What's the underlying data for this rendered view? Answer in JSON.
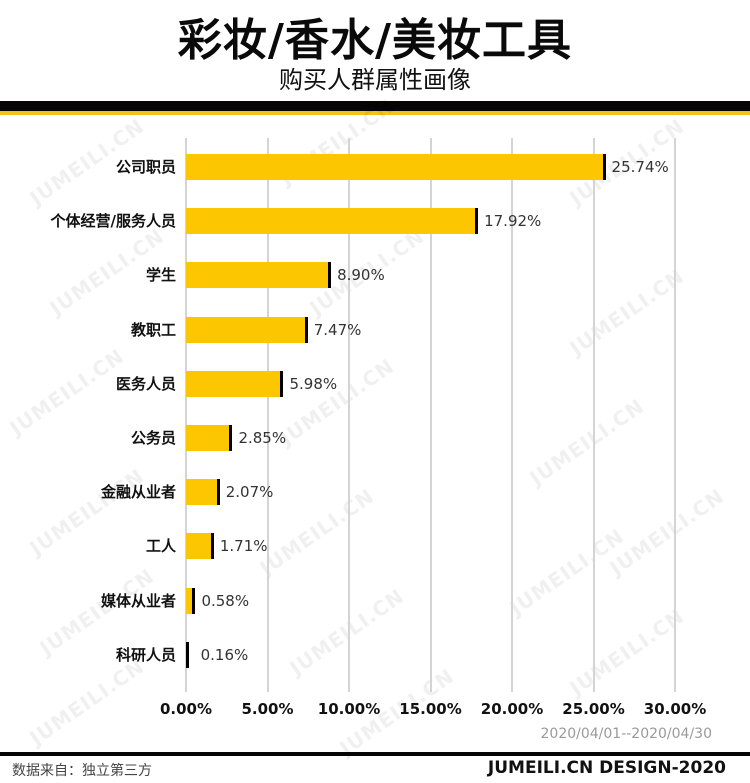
{
  "header": {
    "title": "彩妆/香水/美妆工具",
    "subtitle": "购买人群属性画像"
  },
  "colors": {
    "bar": "#fcc600",
    "bar_cap": "#000000",
    "band_black": "#050505",
    "band_yellow": "#f0c419",
    "grid": "#d4d4d4"
  },
  "chart_data": {
    "type": "bar",
    "orientation": "horizontal",
    "title": "彩妆/香水/美妆工具",
    "subtitle": "购买人群属性画像",
    "categories": [
      "公司职员",
      "个体经营/服务人员",
      "学生",
      "教职工",
      "医务人员",
      "公务员",
      "金融从业者",
      "工人",
      "媒体从业者",
      "科研人员"
    ],
    "values": [
      25.74,
      17.92,
      8.9,
      7.47,
      5.98,
      2.85,
      2.07,
      1.71,
      0.58,
      0.16
    ],
    "value_labels": [
      "25.74%",
      "17.92%",
      "8.90%",
      "7.47%",
      "5.98%",
      "2.85%",
      "2.07%",
      "1.71%",
      "0.58%",
      "0.16%"
    ],
    "xlabel": "",
    "ylabel": "",
    "xlim": [
      0,
      30
    ],
    "x_ticks": [
      "0.00%",
      "5.00%",
      "10.00%",
      "15.00%",
      "20.00%",
      "25.00%",
      "30.00%"
    ],
    "grid": true,
    "legend": "none"
  },
  "footer": {
    "date_range": "2020/04/01--2020/04/30",
    "source": "数据来自：独立第三方",
    "brand": "JUMEILI.CN DESIGN-2020"
  },
  "watermark_text": "JUMEILI.CN"
}
